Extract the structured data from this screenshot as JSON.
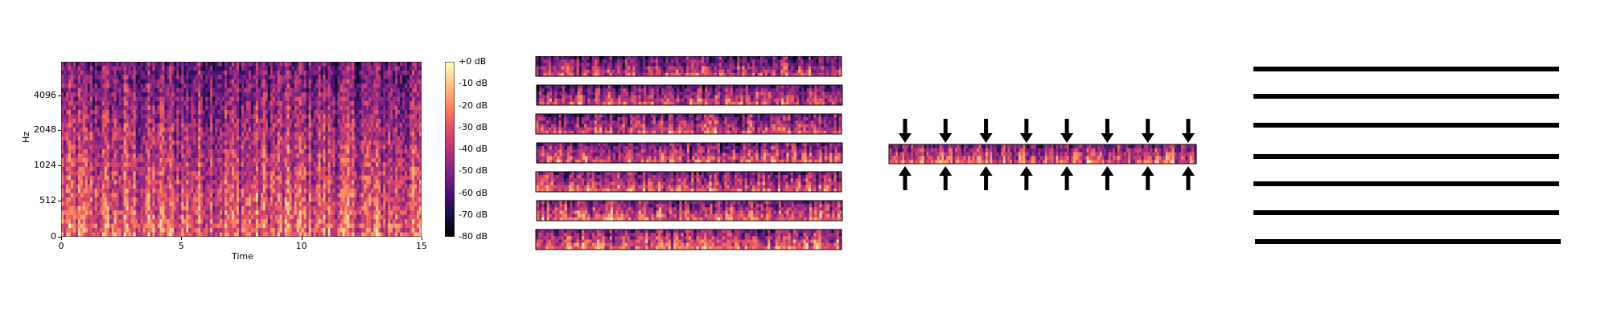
{
  "colors": {
    "colormap": [
      "#000004",
      "#1c1044",
      "#4f127b",
      "#812581",
      "#b5367a",
      "#e55064",
      "#fb8761",
      "#fec287",
      "#fcfdbf"
    ],
    "line": "#000000",
    "arrow": "#000000"
  },
  "chart_data": {
    "type": "heatmap",
    "title": "",
    "xlabel": "Time",
    "ylabel": "Hz",
    "x_ticks": [
      "0",
      "5",
      "10",
      "15"
    ],
    "x_tick_values": [
      0,
      5,
      10,
      15
    ],
    "xlim": [
      0,
      15
    ],
    "y_ticks": [
      "0",
      "512",
      "1024",
      "2048",
      "4096"
    ],
    "colorbar_ticks": [
      "+0 dB",
      "-10 dB",
      "-20 dB",
      "-30 dB",
      "-40 dB",
      "-50 dB",
      "-60 dB",
      "-70 dB",
      "-80 dB"
    ],
    "colorbar_range": [
      -80,
      0
    ]
  },
  "diagram": {
    "segments_count": 7,
    "compressed_strip": true,
    "arrows_per_side": 8,
    "output_lines": 7
  }
}
